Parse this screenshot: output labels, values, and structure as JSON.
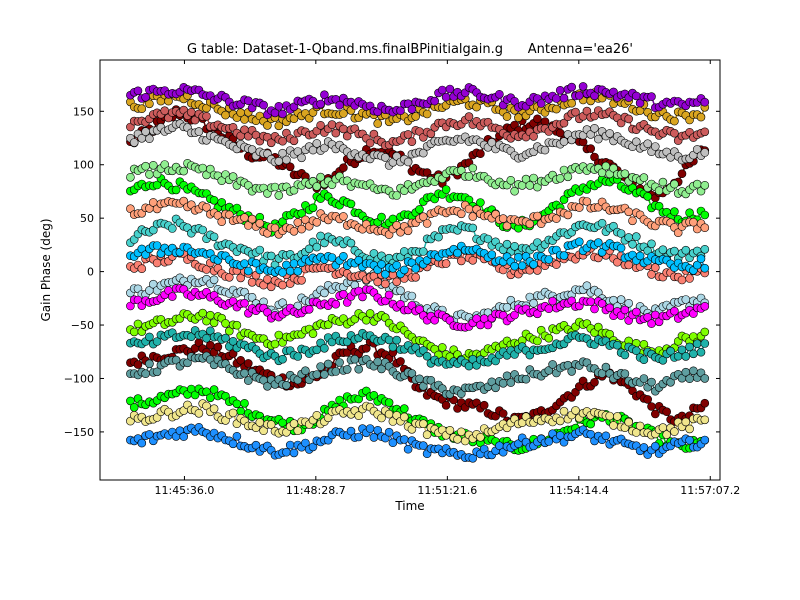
{
  "chart_data": {
    "type": "scatter",
    "title": "G table: Dataset-1-Qband.ms.finalBPinitialgain.g      Antenna='ea26'",
    "xlabel": "Time",
    "ylabel": "Gain Phase (deg)",
    "xlim": [
      "11:43:45",
      "11:57:20"
    ],
    "ylim": [
      -195,
      198
    ],
    "x_ticks": [
      "11:45:36.0",
      "11:48:28.7",
      "11:51:21.6",
      "11:54:14.4",
      "11:57:07.2"
    ],
    "y_ticks": [
      -150,
      -100,
      -50,
      0,
      50,
      100,
      150
    ],
    "grid": false,
    "legend": "none",
    "time_range": [
      "11:44:25",
      "11:57:00"
    ],
    "sample_interval_s": 5,
    "series": [
      {
        "color": "#800000",
        "line_color": "#600000",
        "phase_deg": [
          120,
          135,
          150,
          140,
          125,
          110,
          105,
          90,
          80,
          100,
          115,
          110,
          95,
          85,
          100,
          120,
          135,
          140,
          130,
          115,
          100,
          80,
          70,
          90,
          115
        ]
      },
      {
        "color": "#800000",
        "line_color": "#600000",
        "phase_deg": [
          -85,
          -80,
          -75,
          -70,
          -78,
          -90,
          -100,
          -105,
          -95,
          -75,
          -70,
          -80,
          -110,
          -120,
          -125,
          -130,
          -140,
          -135,
          -120,
          -105,
          -95,
          -110,
          -130,
          -140,
          -125
        ]
      },
      {
        "color": "#00ff00",
        "line_color": "#00cc00",
        "phase_deg": [
          75,
          85,
          80,
          70,
          60,
          50,
          40,
          55,
          70,
          65,
          50,
          45,
          60,
          75,
          70,
          55,
          40,
          50,
          65,
          80,
          85,
          75,
          60,
          50,
          55
        ]
      },
      {
        "color": "#00ff00",
        "line_color": "#00cc00",
        "phase_deg": [
          -125,
          -120,
          -115,
          -110,
          -120,
          -130,
          -140,
          -145,
          -135,
          -120,
          -115,
          -125,
          -140,
          -150,
          -155,
          -160,
          -165,
          -160,
          -150,
          -140,
          -135,
          -145,
          -155,
          -165,
          -160
        ]
      },
      {
        "color": "#48d1cc",
        "line_color": "#20b2aa",
        "phase_deg": [
          30,
          40,
          45,
          35,
          25,
          20,
          10,
          15,
          30,
          25,
          15,
          10,
          20,
          35,
          40,
          30,
          20,
          25,
          35,
          45,
          40,
          30,
          20,
          15,
          20
        ]
      },
      {
        "color": "#add8e6",
        "line_color": "#87ceeb",
        "phase_deg": [
          -20,
          -15,
          -10,
          -5,
          -15,
          -25,
          -35,
          -30,
          -20,
          -10,
          -5,
          -15,
          -30,
          -40,
          -45,
          -40,
          -30,
          -25,
          -20,
          -15,
          -25,
          -35,
          -40,
          -30,
          -25
        ]
      },
      {
        "color": "#7fff00",
        "line_color": "#66cc00",
        "phase_deg": [
          -55,
          -50,
          -45,
          -40,
          -50,
          -60,
          -65,
          -60,
          -50,
          -45,
          -40,
          -50,
          -65,
          -75,
          -80,
          -75,
          -65,
          -60,
          -55,
          -50,
          -60,
          -70,
          -75,
          -65,
          -60
        ]
      },
      {
        "color": "#ff00ff",
        "line_color": "#cc00cc",
        "phase_deg": [
          -30,
          -25,
          -20,
          -22,
          -28,
          -35,
          -40,
          -38,
          -30,
          -25,
          -20,
          -28,
          -38,
          -45,
          -48,
          -45,
          -40,
          -35,
          -30,
          -28,
          -35,
          -42,
          -45,
          -40,
          -35
        ]
      },
      {
        "color": "#fa8072",
        "line_color": "#e06050",
        "phase_deg": [
          5,
          10,
          15,
          8,
          0,
          -5,
          -10,
          -5,
          5,
          0,
          -5,
          -8,
          0,
          10,
          15,
          8,
          0,
          5,
          12,
          18,
          15,
          8,
          0,
          -5,
          0
        ]
      },
      {
        "color": "#c0c0c0",
        "line_color": "#a0a0a0",
        "phase_deg": [
          125,
          130,
          135,
          128,
          120,
          112,
          105,
          110,
          118,
          115,
          108,
          102,
          110,
          120,
          125,
          118,
          110,
          115,
          122,
          130,
          128,
          120,
          112,
          108,
          112
        ]
      },
      {
        "color": "#daa520",
        "line_color": "#b8860b",
        "phase_deg": [
          155,
          160,
          165,
          158,
          150,
          145,
          140,
          145,
          152,
          150,
          145,
          140,
          148,
          155,
          160,
          155,
          148,
          150,
          158,
          165,
          162,
          155,
          148,
          145,
          150
        ]
      },
      {
        "color": "#cd5c5c",
        "line_color": "#b04040",
        "phase_deg": [
          140,
          145,
          148,
          142,
          135,
          128,
          122,
          128,
          135,
          132,
          125,
          120,
          128,
          138,
          142,
          136,
          128,
          132,
          140,
          148,
          145,
          138,
          130,
          125,
          130
        ]
      },
      {
        "color": "#9400d3",
        "line_color": "#7000a0",
        "phase_deg": [
          165,
          168,
          170,
          166,
          160,
          156,
          150,
          155,
          162,
          160,
          155,
          150,
          158,
          165,
          168,
          164,
          158,
          160,
          166,
          170,
          168,
          163,
          158,
          155,
          160
        ]
      },
      {
        "color": "#1e90ff",
        "line_color": "#1060d0",
        "phase_deg": [
          -160,
          -155,
          -150,
          -148,
          -155,
          -162,
          -168,
          -165,
          -158,
          -152,
          -150,
          -156,
          -165,
          -170,
          -172,
          -168,
          -162,
          -158,
          -155,
          -152,
          -158,
          -165,
          -168,
          -162,
          -158
        ]
      },
      {
        "color": "#f0e68c",
        "line_color": "#d0c060",
        "phase_deg": [
          -140,
          -135,
          -130,
          -128,
          -135,
          -142,
          -148,
          -145,
          -138,
          -132,
          -130,
          -136,
          -145,
          -152,
          -155,
          -150,
          -142,
          -138,
          -135,
          -132,
          -138,
          -145,
          -150,
          -145,
          -140
        ]
      },
      {
        "color": "#5f9ea0",
        "line_color": "#408080",
        "phase_deg": [
          -95,
          -90,
          -85,
          -82,
          -90,
          -98,
          -105,
          -100,
          -92,
          -88,
          -85,
          -92,
          -102,
          -110,
          -112,
          -108,
          -100,
          -95,
          -90,
          -88,
          -95,
          -102,
          -108,
          -100,
          -95
        ]
      },
      {
        "color": "#ffa07a",
        "line_color": "#e08050",
        "phase_deg": [
          55,
          60,
          62,
          58,
          50,
          45,
          38,
          42,
          50,
          48,
          42,
          38,
          45,
          55,
          58,
          52,
          45,
          48,
          55,
          62,
          60,
          52,
          45,
          40,
          45
        ]
      },
      {
        "color": "#00bfff",
        "line_color": "#0090d0",
        "phase_deg": [
          15,
          20,
          22,
          18,
          10,
          5,
          0,
          5,
          12,
          10,
          5,
          0,
          8,
          18,
          22,
          16,
          8,
          12,
          18,
          25,
          22,
          15,
          8,
          4,
          8
        ]
      },
      {
        "color": "#90ee90",
        "line_color": "#60c060",
        "phase_deg": [
          92,
          95,
          98,
          94,
          86,
          80,
          74,
          78,
          86,
          84,
          78,
          74,
          80,
          90,
          94,
          88,
          80,
          84,
          92,
          98,
          96,
          88,
          80,
          76,
          80
        ]
      },
      {
        "color": "#20b2aa",
        "line_color": "#108080",
        "phase_deg": [
          -70,
          -65,
          -60,
          -58,
          -65,
          -72,
          -80,
          -76,
          -68,
          -62,
          -60,
          -66,
          -76,
          -85,
          -88,
          -84,
          -76,
          -72,
          -66,
          -62,
          -68,
          -76,
          -82,
          -76,
          -70
        ]
      }
    ]
  }
}
